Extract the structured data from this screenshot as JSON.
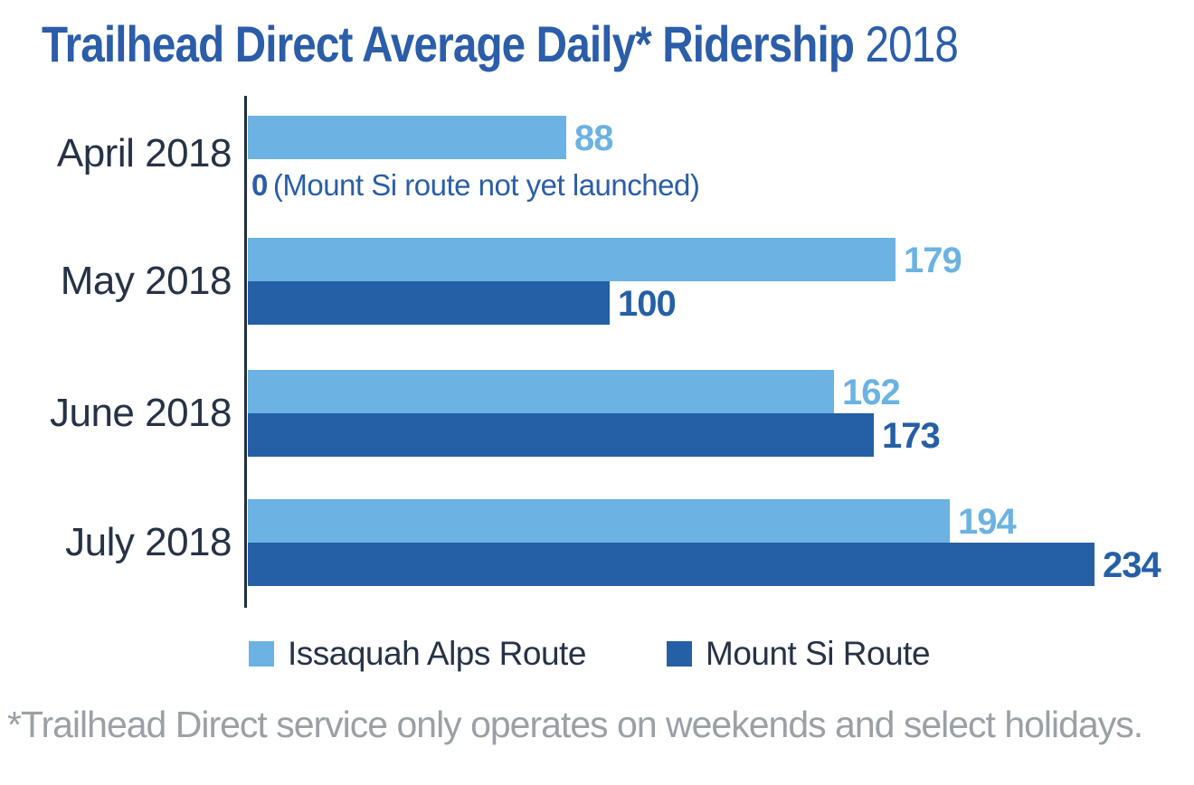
{
  "title": {
    "main": "Trailhead Direct Average Daily* Ridership",
    "year": "2018"
  },
  "footnote": "*Trailhead Direct service only operates on weekends and select holidays.",
  "colors": {
    "title_blue": "#2b5da9",
    "issaquah_light_blue": "#6cb2e2",
    "mount_si_dark_blue": "#255fa6",
    "category_label_navy": "#263246",
    "axis_navy": "#222d3d",
    "footnote_gray": "#9ba0a5"
  },
  "chart_data": {
    "type": "bar",
    "orientation": "horizontal",
    "title": "Trailhead Direct Average Daily* Ridership 2018",
    "categories": [
      "April 2018",
      "May 2018",
      "June 2018",
      "July 2018"
    ],
    "series": [
      {
        "name": "Issaquah Alps Route",
        "color": "#6cb2e2",
        "values": [
          88,
          179,
          162,
          194
        ]
      },
      {
        "name": "Mount Si Route",
        "color": "#255fa6",
        "values": [
          0,
          100,
          173,
          234
        ]
      }
    ],
    "april_mount_si_note": {
      "value": "0",
      "text": "(Mount Si route not yet launched)"
    },
    "xlabel": "",
    "ylabel": "",
    "xlim": [
      0,
      234
    ],
    "grid": false,
    "value_labels": true,
    "legend_position": "bottom"
  }
}
